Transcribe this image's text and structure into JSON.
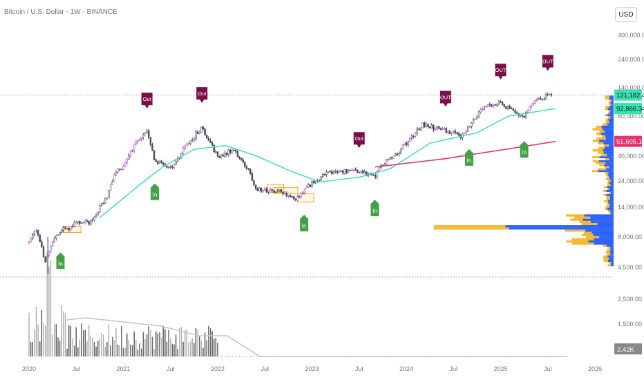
{
  "header": {
    "title": "Bitcoin / U.S. Dollar - 1W - BINANCE",
    "currency_button": "USD"
  },
  "colors": {
    "up": "#b64fcf",
    "down": "#444a52",
    "ma_fast": "#3fe0b0",
    "ma_slow": "#e8336e",
    "signal_in": "#43a047",
    "signal_out": "#7b1048",
    "box": "#f0a726",
    "vp_up": "#2962ff",
    "vp_down": "#f5b82e",
    "volume_bar": "#888888",
    "volume_ma": "#c2c4c8",
    "current_price_line": "#b2b5be"
  },
  "chart_data": {
    "type": "candlestick",
    "price_scale": "log",
    "y_ticks": [
      "400,000.00",
      "240,000.00",
      "140,000.00",
      "80,000.00",
      "40,000.00",
      "24,000.00",
      "14,000.00",
      "8,000.00",
      "4,500.00"
    ],
    "volume_ticks": [
      "2,500.00",
      "1,500.00"
    ],
    "x_ticks": [
      "2020",
      "Jul",
      "2021",
      "Jul",
      "2022",
      "Jul",
      "2023",
      "Jul",
      "2024",
      "Jul",
      "2025",
      "Jul",
      "2026"
    ],
    "price_path": [
      {
        "date": "2020-01",
        "value": 7200
      },
      {
        "date": "2020-02",
        "value": 9500
      },
      {
        "date": "2020-03",
        "value": 5000
      },
      {
        "date": "2020-04",
        "value": 7500
      },
      {
        "date": "2020-05",
        "value": 9300
      },
      {
        "date": "2020-06",
        "value": 9300
      },
      {
        "date": "2020-07",
        "value": 10500
      },
      {
        "date": "2020-09",
        "value": 10700
      },
      {
        "date": "2020-11",
        "value": 18000
      },
      {
        "date": "2020-12",
        "value": 29000
      },
      {
        "date": "2021-01",
        "value": 33000
      },
      {
        "date": "2021-02",
        "value": 45000
      },
      {
        "date": "2021-04",
        "value": 60000
      },
      {
        "date": "2021-05",
        "value": 37000
      },
      {
        "date": "2021-07",
        "value": 31000
      },
      {
        "date": "2021-09",
        "value": 48000
      },
      {
        "date": "2021-11",
        "value": 66000
      },
      {
        "date": "2022-01",
        "value": 40000
      },
      {
        "date": "2022-03",
        "value": 45000
      },
      {
        "date": "2022-05",
        "value": 29000
      },
      {
        "date": "2022-06",
        "value": 20000
      },
      {
        "date": "2022-09",
        "value": 19500
      },
      {
        "date": "2022-11",
        "value": 16500
      },
      {
        "date": "2023-01",
        "value": 23000
      },
      {
        "date": "2023-03",
        "value": 28000
      },
      {
        "date": "2023-06",
        "value": 30000
      },
      {
        "date": "2023-09",
        "value": 26500
      },
      {
        "date": "2023-10",
        "value": 34500
      },
      {
        "date": "2023-12",
        "value": 43000
      },
      {
        "date": "2024-03",
        "value": 70000
      },
      {
        "date": "2024-08",
        "value": 57000
      },
      {
        "date": "2024-11",
        "value": 96000
      },
      {
        "date": "2025-01",
        "value": 102000
      },
      {
        "date": "2025-04",
        "value": 78000
      },
      {
        "date": "2025-05",
        "value": 105000
      },
      {
        "date": "2025-07",
        "value": 121000
      }
    ],
    "ma_fast": [
      {
        "date": "2020-10",
        "value": 11500
      },
      {
        "date": "2021-03",
        "value": 22000
      },
      {
        "date": "2021-06",
        "value": 32000
      },
      {
        "date": "2021-10",
        "value": 45000
      },
      {
        "date": "2022-02",
        "value": 48000
      },
      {
        "date": "2022-06",
        "value": 40000
      },
      {
        "date": "2022-10",
        "value": 30000
      },
      {
        "date": "2023-02",
        "value": 23500
      },
      {
        "date": "2023-07",
        "value": 26000
      },
      {
        "date": "2023-11",
        "value": 31000
      },
      {
        "date": "2024-04",
        "value": 50000
      },
      {
        "date": "2024-10",
        "value": 60000
      },
      {
        "date": "2025-02",
        "value": 80000
      },
      {
        "date": "2025-08",
        "value": 92866
      }
    ],
    "ma_slow": [
      {
        "date": "2023-09",
        "value": 32000
      },
      {
        "date": "2024-06",
        "value": 38000
      },
      {
        "date": "2025-08",
        "value": 51605
      }
    ],
    "signals": [
      {
        "type": "In",
        "date": "2020-05"
      },
      {
        "type": "In",
        "date": "2021-05"
      },
      {
        "type": "In",
        "date": "2022-12"
      },
      {
        "type": "In",
        "date": "2023-09"
      },
      {
        "type": "In",
        "date": "2024-09"
      },
      {
        "type": "In",
        "date": "2025-04"
      },
      {
        "type": "Out",
        "date": "2021-04"
      },
      {
        "type": "Out",
        "date": "2021-11"
      },
      {
        "type": "Out",
        "date": "2023-07"
      },
      {
        "type": "OUT",
        "date": "2024-06"
      },
      {
        "type": "OUT",
        "date": "2025-01"
      },
      {
        "type": "OUT",
        "date": "2025-07"
      }
    ],
    "price_labels": [
      {
        "text": "121,182.42",
        "value": 121182.42,
        "role": "last-price"
      },
      {
        "text": "92,866.34",
        "value": 92866.34,
        "role": "ma-fast"
      },
      {
        "text": "51,605.10",
        "value": 51605.1,
        "role": "ma-slow"
      }
    ],
    "volume_label": "2.42K",
    "horizontal_line": 121182.42
  }
}
